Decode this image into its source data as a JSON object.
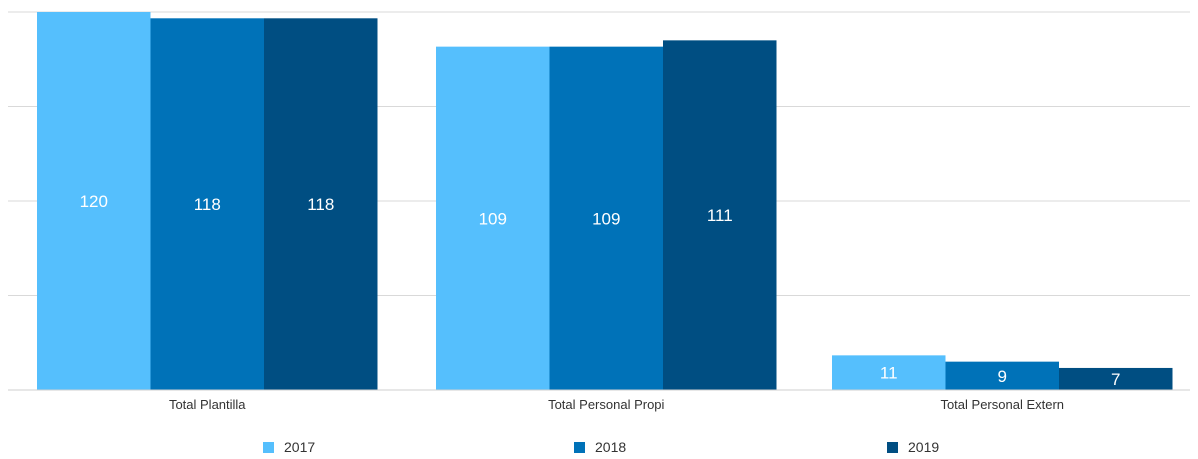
{
  "chart_data": {
    "type": "bar",
    "categories": [
      "Total Plantilla",
      "Total Personal Propi",
      "Total Personal Extern"
    ],
    "series": [
      {
        "name": "2017",
        "color": "#55bffd",
        "values": [
          120,
          109,
          11
        ]
      },
      {
        "name": "2018",
        "color": "#0072b8",
        "values": [
          118,
          109,
          9
        ]
      },
      {
        "name": "2019",
        "color": "#004e82",
        "values": [
          118,
          111,
          7
        ]
      }
    ],
    "ylim": [
      0,
      120
    ],
    "grid": true,
    "legend_position": "bottom"
  }
}
